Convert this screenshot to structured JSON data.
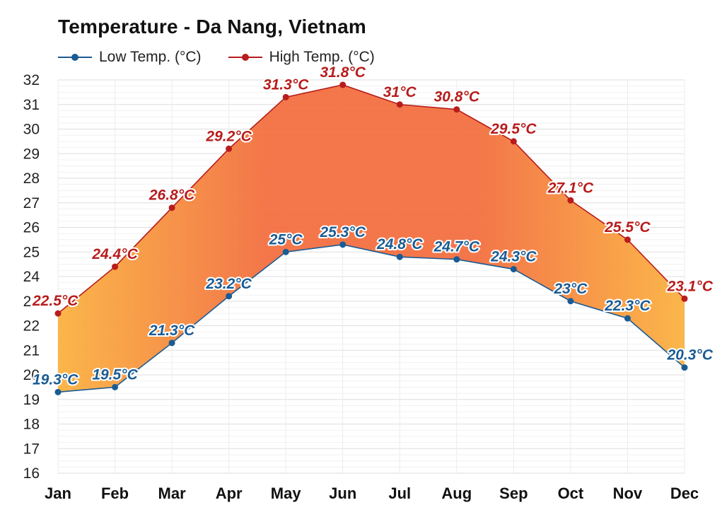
{
  "chart_data": {
    "type": "area",
    "title": "Temperature - Da Nang, Vietnam",
    "categories": [
      "Jan",
      "Feb",
      "Mar",
      "Apr",
      "May",
      "Jun",
      "Jul",
      "Aug",
      "Sep",
      "Oct",
      "Nov",
      "Dec"
    ],
    "series": [
      {
        "name": "Low Temp. (°C)",
        "color": "#1a5b94",
        "values": [
          19.3,
          19.5,
          21.3,
          23.2,
          25,
          25.3,
          24.8,
          24.7,
          24.3,
          23,
          22.3,
          20.3
        ],
        "labels": [
          "19.3°C",
          "19.5°C",
          "21.3°C",
          "23.2°C",
          "25°C",
          "25.3°C",
          "24.8°C",
          "24.7°C",
          "24.3°C",
          "23°C",
          "22.3°C",
          "20.3°C"
        ]
      },
      {
        "name": "High Temp. (°C)",
        "color": "#b81c1c",
        "values": [
          22.5,
          24.4,
          26.8,
          29.2,
          31.3,
          31.8,
          31,
          30.8,
          29.5,
          27.1,
          25.5,
          23.1
        ],
        "labels": [
          "22.5°C",
          "24.4°C",
          "26.8°C",
          "29.2°C",
          "31.3°C",
          "31.8°C",
          "31°C",
          "30.8°C",
          "29.5°C",
          "27.1°C",
          "25.5°C",
          "23.1°C"
        ]
      }
    ],
    "ylim": [
      16,
      32
    ],
    "yticks": [
      "16",
      "17",
      "18",
      "19",
      "20",
      "21",
      "22",
      "23",
      "24",
      "25",
      "26",
      "27",
      "28",
      "29",
      "30",
      "31",
      "32"
    ],
    "xlabel": "",
    "ylabel": "",
    "grid": true,
    "legend_position": "top-left",
    "band_color_cool": "#fbb03b",
    "band_color_warm": "#f26b3a"
  }
}
